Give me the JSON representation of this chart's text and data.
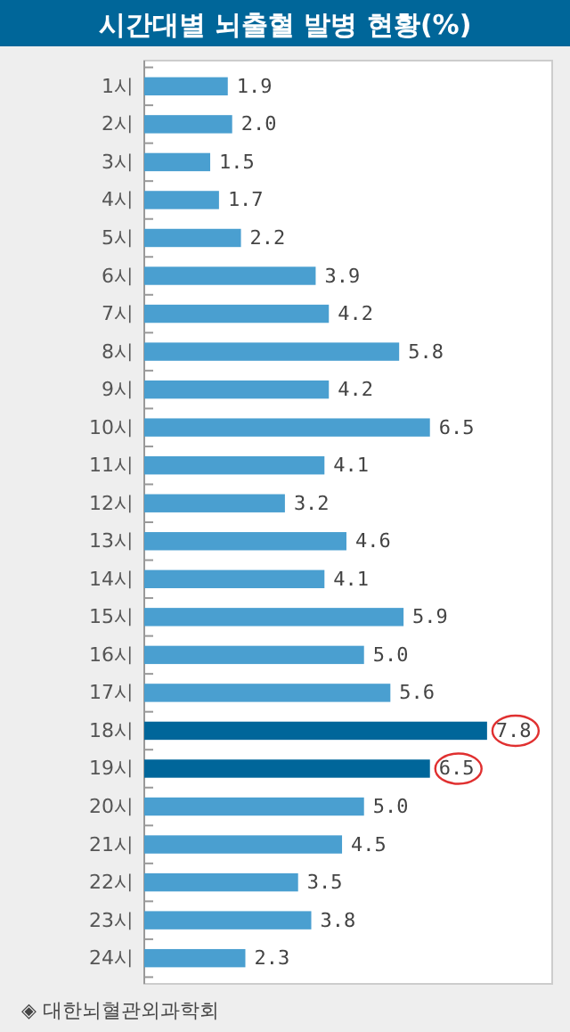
{
  "chart_data": {
    "type": "bar",
    "orientation": "horizontal",
    "title": "시간대별 뇌출혈 발병 현황(%)",
    "categories": [
      "1시",
      "2시",
      "3시",
      "4시",
      "5시",
      "6시",
      "7시",
      "8시",
      "9시",
      "10시",
      "11시",
      "12시",
      "13시",
      "14시",
      "15시",
      "16시",
      "17시",
      "18시",
      "19시",
      "20시",
      "21시",
      "22시",
      "23시",
      "24시"
    ],
    "values": [
      1.9,
      2.0,
      1.5,
      1.7,
      2.2,
      3.9,
      4.2,
      5.8,
      4.2,
      6.5,
      4.1,
      3.2,
      4.6,
      4.1,
      5.9,
      5.0,
      5.6,
      7.8,
      6.5,
      5.0,
      4.5,
      3.5,
      3.8,
      2.3
    ],
    "colors": [
      "#4a9fd0",
      "#4a9fd0",
      "#4a9fd0",
      "#4a9fd0",
      "#4a9fd0",
      "#4a9fd0",
      "#4a9fd0",
      "#4a9fd0",
      "#4a9fd0",
      "#4a9fd0",
      "#4a9fd0",
      "#4a9fd0",
      "#4a9fd0",
      "#4a9fd0",
      "#4a9fd0",
      "#4a9fd0",
      "#4a9fd0",
      "#00669a",
      "#00669a",
      "#4a9fd0",
      "#4a9fd0",
      "#4a9fd0",
      "#4a9fd0",
      "#4a9fd0"
    ],
    "value_labels": [
      "1.9",
      "2.0",
      "1.5",
      "1.7",
      "2.2",
      "3.9",
      "4.2",
      "5.8",
      "4.2",
      "6.5",
      "4.1",
      "3.2",
      "4.6",
      "4.1",
      "5.9",
      "5.0",
      "5.6",
      "7.8",
      "6.5",
      "5.0",
      "4.5",
      "3.5",
      "3.8",
      "2.3"
    ],
    "annotations": [
      "◈ 대한뇌혈관외과학회"
    ]
  }
}
